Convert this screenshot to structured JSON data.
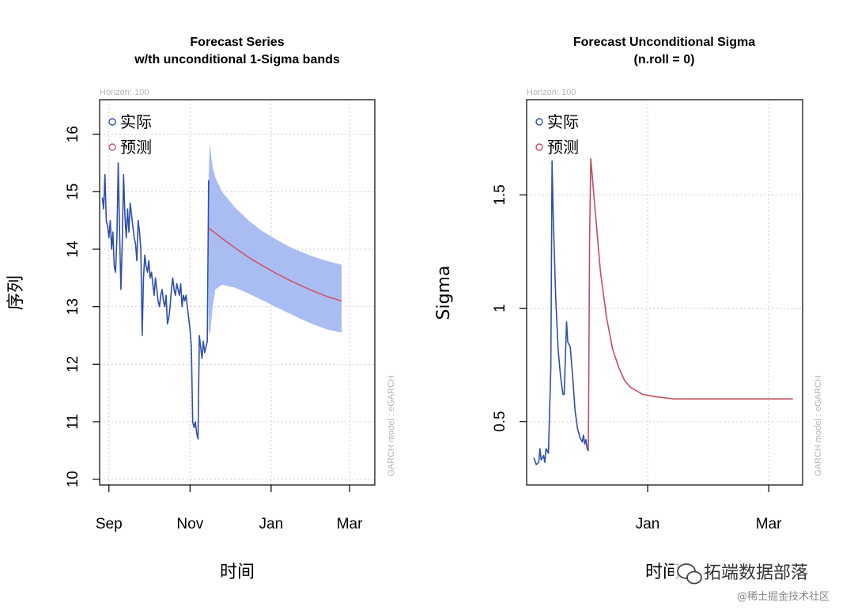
{
  "chart_data": [
    {
      "type": "line",
      "title": "Forecast Series",
      "subtitle": "w/th unconditional 1-Sigma bands",
      "xlabel": "时间",
      "ylabel": "序列",
      "note": "Horizon: 100",
      "side_note": "GARCH model : eGARCH",
      "xlim": [
        -7,
        200
      ],
      "ylim": [
        9.9,
        16.6
      ],
      "x_ticks": [
        {
          "x": 0,
          "label": "Sep"
        },
        {
          "x": 61,
          "label": "Nov"
        },
        {
          "x": 122,
          "label": "Jan"
        },
        {
          "x": 181,
          "label": "Mar"
        }
      ],
      "y_ticks": [
        10,
        11,
        12,
        13,
        14,
        15,
        16
      ],
      "grid": true,
      "legend_position": "top-left",
      "legend": [
        {
          "label": "实际",
          "color": "#2f4faa"
        },
        {
          "label": "预测",
          "color": "#d0566a"
        }
      ],
      "series": [
        {
          "name": "实际",
          "color": "#2f4faa",
          "points": [
            [
              -5,
              14.9
            ],
            [
              -4,
              14.7
            ],
            [
              -3,
              15.3
            ],
            [
              -2,
              14.5
            ],
            [
              -1,
              14.4
            ],
            [
              0,
              14.2
            ],
            [
              1,
              14.5
            ],
            [
              2,
              14.0
            ],
            [
              3,
              14.3
            ],
            [
              4,
              13.7
            ],
            [
              5,
              13.6
            ],
            [
              6,
              14.2
            ],
            [
              7,
              15.5
            ],
            [
              8,
              14.3
            ],
            [
              9,
              13.3
            ],
            [
              10,
              14.1
            ],
            [
              11,
              15.3
            ],
            [
              12,
              14.6
            ],
            [
              13,
              14.2
            ],
            [
              14,
              14.7
            ],
            [
              15,
              14.3
            ],
            [
              16,
              14.8
            ],
            [
              17,
              14.6
            ],
            [
              18,
              14.4
            ],
            [
              19,
              14.2
            ],
            [
              20,
              14.1
            ],
            [
              21,
              13.8
            ],
            [
              22,
              14.5
            ],
            [
              23,
              14.3
            ],
            [
              24,
              14.0
            ],
            [
              25,
              12.5
            ],
            [
              26,
              13.5
            ],
            [
              27,
              13.9
            ],
            [
              28,
              13.7
            ],
            [
              29,
              13.6
            ],
            [
              30,
              13.8
            ],
            [
              31,
              13.5
            ],
            [
              32,
              13.6
            ],
            [
              33,
              13.4
            ],
            [
              34,
              13.2
            ],
            [
              35,
              13.5
            ],
            [
              36,
              13.3
            ],
            [
              37,
              13.1
            ],
            [
              38,
              13.0
            ],
            [
              39,
              13.2
            ],
            [
              40,
              13.3
            ],
            [
              41,
              13.1
            ],
            [
              42,
              13.0
            ],
            [
              43,
              13.2
            ],
            [
              44,
              12.7
            ],
            [
              45,
              12.8
            ],
            [
              46,
              13.0
            ],
            [
              47,
              13.3
            ],
            [
              48,
              13.5
            ],
            [
              49,
              13.3
            ],
            [
              50,
              13.2
            ],
            [
              51,
              13.4
            ],
            [
              52,
              13.3
            ],
            [
              53,
              13.2
            ],
            [
              54,
              13.4
            ],
            [
              55,
              13.0
            ],
            [
              56,
              13.2
            ],
            [
              57,
              13.1
            ],
            [
              58,
              13.2
            ],
            [
              59,
              13.0
            ],
            [
              60,
              12.8
            ],
            [
              61,
              12.6
            ],
            [
              62,
              12.3
            ],
            [
              63,
              11.0
            ],
            [
              64,
              10.9
            ],
            [
              65,
              11.0
            ],
            [
              66,
              10.8
            ],
            [
              67,
              10.7
            ],
            [
              68,
              12.5
            ],
            [
              69,
              12.3
            ],
            [
              70,
              12.1
            ],
            [
              71,
              12.4
            ],
            [
              72,
              12.2
            ],
            [
              73,
              12.3
            ],
            [
              74,
              12.4
            ],
            [
              75,
              15.2
            ]
          ]
        },
        {
          "name": "预测",
          "color": "#d0566a",
          "points": [
            [
              75,
              14.37
            ],
            [
              85,
              14.19
            ],
            [
              95,
              14.02
            ],
            [
              105,
              13.86
            ],
            [
              115,
              13.72
            ],
            [
              125,
              13.59
            ],
            [
              135,
              13.47
            ],
            [
              145,
              13.36
            ],
            [
              155,
              13.26
            ],
            [
              165,
              13.17
            ],
            [
              175,
              13.1
            ]
          ],
          "band": {
            "color": "#a9bdf2",
            "upper": [
              [
                75,
                15.3
              ],
              [
                76,
                15.85
              ],
              [
                77,
                15.6
              ],
              [
                78,
                15.43
              ],
              [
                80,
                15.25
              ],
              [
                85,
                15.0
              ],
              [
                95,
                14.72
              ],
              [
                105,
                14.5
              ],
              [
                115,
                14.32
              ],
              [
                125,
                14.18
              ],
              [
                135,
                14.05
              ],
              [
                145,
                13.95
              ],
              [
                155,
                13.86
              ],
              [
                165,
                13.79
              ],
              [
                175,
                13.73
              ]
            ],
            "lower": [
              [
                175,
                12.55
              ],
              [
                165,
                12.6
              ],
              [
                155,
                12.68
              ],
              [
                145,
                12.78
              ],
              [
                135,
                12.89
              ],
              [
                125,
                13.0
              ],
              [
                115,
                13.12
              ],
              [
                105,
                13.23
              ],
              [
                95,
                13.33
              ],
              [
                85,
                13.38
              ],
              [
                80,
                13.3
              ],
              [
                78,
                13.0
              ],
              [
                77,
                12.75
              ],
              [
                76,
                12.5
              ],
              [
                75,
                12.6
              ]
            ]
          }
        }
      ]
    },
    {
      "type": "line",
      "title": "Forecast Unconditional Sigma",
      "subtitle": "(n.roll = 0)",
      "xlabel": "时间",
      "ylabel": "Sigma",
      "note": "Horizon: 100",
      "side_note": "GARCH model : eGARCH",
      "xlim": [
        -6,
        222
      ],
      "ylim": [
        0.22,
        1.92
      ],
      "x_ticks": [
        {
          "x": 94,
          "label": "Jan"
        },
        {
          "x": 194,
          "label": "Mar"
        }
      ],
      "y_ticks": [
        0.5,
        1.0,
        1.5
      ],
      "grid": true,
      "legend_position": "top-left",
      "legend": [
        {
          "label": "实际",
          "color": "#2f4faa"
        },
        {
          "label": "预测",
          "color": "#c44d5e"
        }
      ],
      "series": [
        {
          "name": "实际",
          "color": "#2f4faa",
          "points": [
            [
              0,
              0.34
            ],
            [
              2,
              0.31
            ],
            [
              4,
              0.32
            ],
            [
              5,
              0.38
            ],
            [
              6,
              0.33
            ],
            [
              8,
              0.35
            ],
            [
              9,
              0.32
            ],
            [
              10,
              0.38
            ],
            [
              12,
              0.36
            ],
            [
              14,
              0.74
            ],
            [
              15,
              1.65
            ],
            [
              16,
              1.4
            ],
            [
              18,
              1.05
            ],
            [
              20,
              0.82
            ],
            [
              22,
              0.7
            ],
            [
              24,
              0.62
            ],
            [
              25,
              0.62
            ],
            [
              26,
              0.78
            ],
            [
              27,
              0.94
            ],
            [
              28,
              0.85
            ],
            [
              30,
              0.83
            ],
            [
              32,
              0.7
            ],
            [
              34,
              0.55
            ],
            [
              36,
              0.47
            ],
            [
              38,
              0.43
            ],
            [
              40,
              0.41
            ],
            [
              41,
              0.44
            ],
            [
              42,
              0.4
            ],
            [
              43,
              0.42
            ],
            [
              44,
              0.38
            ],
            [
              45,
              0.37
            ]
          ]
        },
        {
          "name": "预测",
          "color": "#c44d5e",
          "points": [
            [
              45,
              0.37
            ],
            [
              46,
              1.3
            ],
            [
              47,
              1.66
            ],
            [
              50,
              1.47
            ],
            [
              55,
              1.16
            ],
            [
              60,
              0.96
            ],
            [
              65,
              0.82
            ],
            [
              70,
              0.74
            ],
            [
              75,
              0.68
            ],
            [
              80,
              0.65
            ],
            [
              90,
              0.62
            ],
            [
              100,
              0.61
            ],
            [
              115,
              0.6
            ],
            [
              140,
              0.6
            ],
            [
              170,
              0.6
            ],
            [
              200,
              0.6
            ],
            [
              214,
              0.6
            ]
          ]
        }
      ]
    }
  ],
  "watermark": {
    "text": "拓端数据部落",
    "subtext": "@稀土掘金技术社区"
  }
}
